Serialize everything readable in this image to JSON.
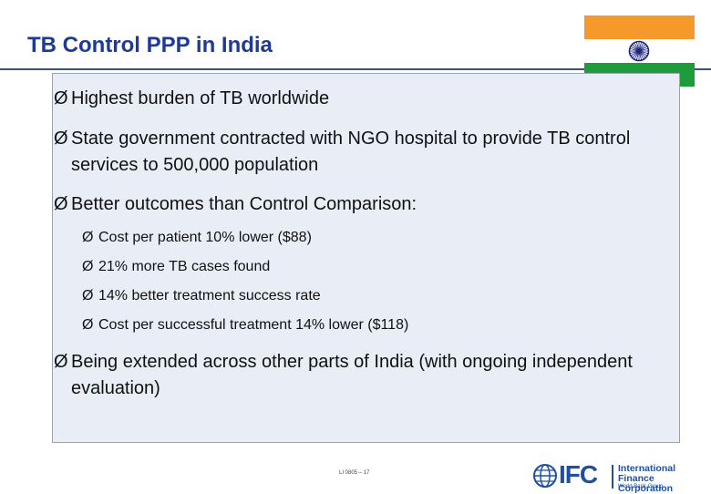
{
  "slide": {
    "title": "TB Control PPP in India",
    "bullets": [
      "Highest burden of TB worldwide",
      "State government contracted with NGO hospital to provide TB control services to 500,000 population",
      "Better outcomes than Control Comparison:",
      "Being extended across other parts of India (with ongoing independent evaluation)"
    ],
    "sub_bullets": [
      "Cost per patient 10% lower ($88)",
      "21% more TB cases found",
      "14% better treatment success rate",
      "Cost per successful treatment 14% lower ($118)"
    ],
    "bullet_symbol": "Ø",
    "footer_code": "LI 0805 – 17"
  },
  "logo": {
    "mark": "IFC",
    "name_line1": "International",
    "name_line2": "Finance Corporation",
    "group": "World Bank Group"
  },
  "flag": {
    "name": "india-flag",
    "colors": {
      "saffron": "#f59a2a",
      "white": "#ffffff",
      "green": "#1e9b3a",
      "chakra": "#1a237e"
    }
  },
  "colors": {
    "title": "#1f3a93",
    "box_fill": "#e8edf6",
    "brand": "#1f4fa3"
  }
}
